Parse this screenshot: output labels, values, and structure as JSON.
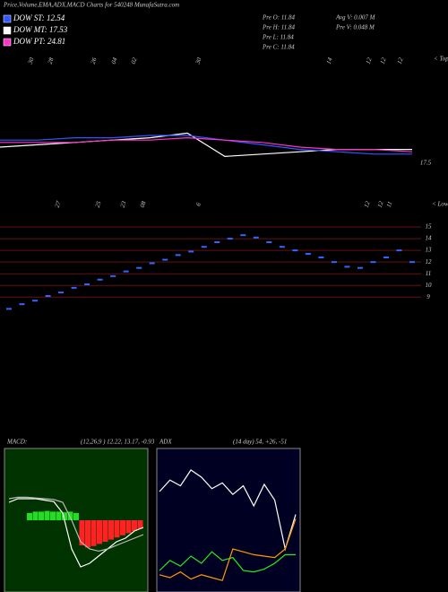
{
  "title": "Price,Volume,EMA,ADX,MACD Charts for 540248 MunafaSutra.com",
  "legend": [
    {
      "label": "DOW ST: 12.54",
      "color": "#3355ff"
    },
    {
      "label": "DOW MT: 17.53",
      "color": "#ffffff"
    },
    {
      "label": "DOW PT: 24.81",
      "color": "#ff33cc"
    }
  ],
  "info": [
    "Pre O: 11.84",
    "Pre H: 11.84",
    "Pre L: 11.84",
    "Pre C: 11.84",
    "Avg V: 0.007 M",
    "Pre V: 0.048 M"
  ],
  "tops_labels": [
    "30",
    "28",
    "26",
    "04",
    "02",
    "30",
    "14",
    "12",
    "12",
    "12"
  ],
  "tops_marker": "< Tops",
  "lows_labels": [
    "27",
    "25",
    "23",
    "08",
    "6",
    "12",
    "12",
    "11"
  ],
  "lows_marker": "< Lows",
  "chart_data": [
    {
      "type": "line",
      "ylim": [
        17,
        22
      ],
      "yticks": [
        17.5
      ],
      "series": [
        {
          "name": "EMA white",
          "color": "#ffffff",
          "values": [
            18.0,
            18.1,
            18.2,
            18.3,
            18.4,
            18.6,
            17.6,
            17.7,
            17.8,
            17.9,
            17.9,
            17.9
          ]
        },
        {
          "name": "EMA blue",
          "color": "#3355ff",
          "values": [
            18.3,
            18.3,
            18.4,
            18.4,
            18.5,
            18.5,
            18.3,
            18.1,
            17.9,
            17.8,
            17.7,
            17.7
          ]
        },
        {
          "name": "EMA pink",
          "color": "#ff33cc",
          "values": [
            18.2,
            18.2,
            18.2,
            18.3,
            18.3,
            18.4,
            18.3,
            18.2,
            18.0,
            17.9,
            17.9,
            17.8
          ]
        }
      ]
    },
    {
      "type": "dash",
      "color": "#3366ff",
      "grid": true,
      "grid_color": "#661111",
      "ylim": [
        6.8,
        16
      ],
      "yticks": [
        9,
        10,
        11,
        12,
        13,
        14,
        15
      ],
      "values": [
        8.0,
        8.4,
        8.7,
        9.1,
        9.4,
        9.8,
        10.1,
        10.5,
        10.8,
        11.2,
        11.5,
        11.9,
        12.2,
        12.6,
        12.9,
        13.3,
        13.7,
        14.0,
        14.3,
        14.1,
        13.7,
        13.3,
        13.0,
        12.7,
        12.4,
        12.0,
        11.6,
        11.5,
        12.0,
        12.4,
        13.0,
        12.0
      ]
    },
    {
      "type": "macd",
      "title": "MACD:",
      "subtitle": "(12,26,9 ) 12.22, 13.17, -0.93",
      "ylim": [
        -10,
        10
      ],
      "background": "#003300",
      "positive_color": "#22dd22",
      "negative_color": "#ff2222",
      "histogram": [
        1.0,
        1.2,
        1.2,
        1.3,
        1.2,
        1.2,
        1.1,
        1.2,
        1.0,
        -3.5,
        -3.8,
        -3.6,
        -3.3,
        -3.0,
        -2.7,
        -2.4,
        -2.1,
        -1.8,
        -1.5,
        -1.2
      ],
      "series": [
        {
          "name": "MACD",
          "color": "#ffffff",
          "values": [
            2.5,
            3,
            3,
            3,
            2.8,
            2.6,
            1,
            -4,
            -6.5,
            -6,
            -5,
            -4,
            -3,
            -2.5,
            -1.5,
            -1
          ]
        },
        {
          "name": "Signal",
          "color": "#bbbbbb",
          "values": [
            3,
            3.2,
            3.2,
            3.1,
            3,
            2.9,
            2.5,
            0,
            -3,
            -4,
            -4.3,
            -4,
            -3.5,
            -3,
            -2.5,
            -2
          ]
        }
      ]
    },
    {
      "type": "adx",
      "title": "ADX",
      "subtitle": "(14 day) 54, +26, -51",
      "ylim": [
        0,
        100
      ],
      "background": "#000022",
      "series": [
        {
          "name": "ADX",
          "color": "#ffffff",
          "values": [
            70,
            78,
            74,
            85,
            80,
            72,
            76,
            68,
            74,
            60,
            75,
            64,
            30,
            54
          ]
        },
        {
          "name": "+DI",
          "color": "#22ee22",
          "values": [
            15,
            22,
            18,
            25,
            20,
            28,
            22,
            24,
            15,
            14,
            16,
            20,
            26,
            26
          ]
        },
        {
          "name": "-DI",
          "color": "#ff9900",
          "values": [
            12,
            10,
            14,
            9,
            12,
            10,
            8,
            30,
            28,
            26,
            25,
            24,
            30,
            51
          ]
        }
      ]
    }
  ]
}
